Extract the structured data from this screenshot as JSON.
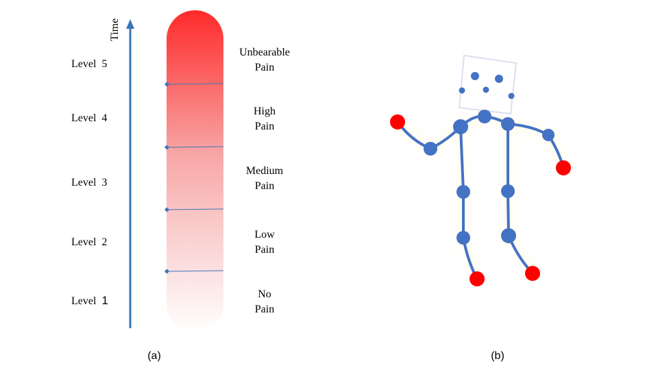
{
  "panel_a": {
    "time_label": "Time",
    "levels": [
      {
        "label": "Level",
        "number": "5",
        "pain_line1": "Unbearable",
        "pain_line2": "Pain"
      },
      {
        "label": "Level",
        "number": "4",
        "pain_line1": "High",
        "pain_line2": "Pain"
      },
      {
        "label": "Level",
        "number": "3",
        "pain_line1": "Medium",
        "pain_line2": "Pain"
      },
      {
        "label": "Level",
        "number": "2",
        "pain_line1": "Low",
        "pain_line2": "Pain"
      },
      {
        "label": "Level",
        "number": "1",
        "pain_line1": "No",
        "pain_line2": "Pain"
      }
    ],
    "caption": "(a)"
  },
  "panel_b": {
    "caption": "(b)"
  },
  "colors": {
    "arrow": "#3b75b8",
    "thermometer_top": "#ff2a2a",
    "thermometer_bottom": "#ffffff",
    "divider": "#3b75b8",
    "skeleton": "#4472c4",
    "joint_blue": "#4472c4",
    "joint_red": "#ff0000",
    "face_box": "#d9dff0"
  }
}
